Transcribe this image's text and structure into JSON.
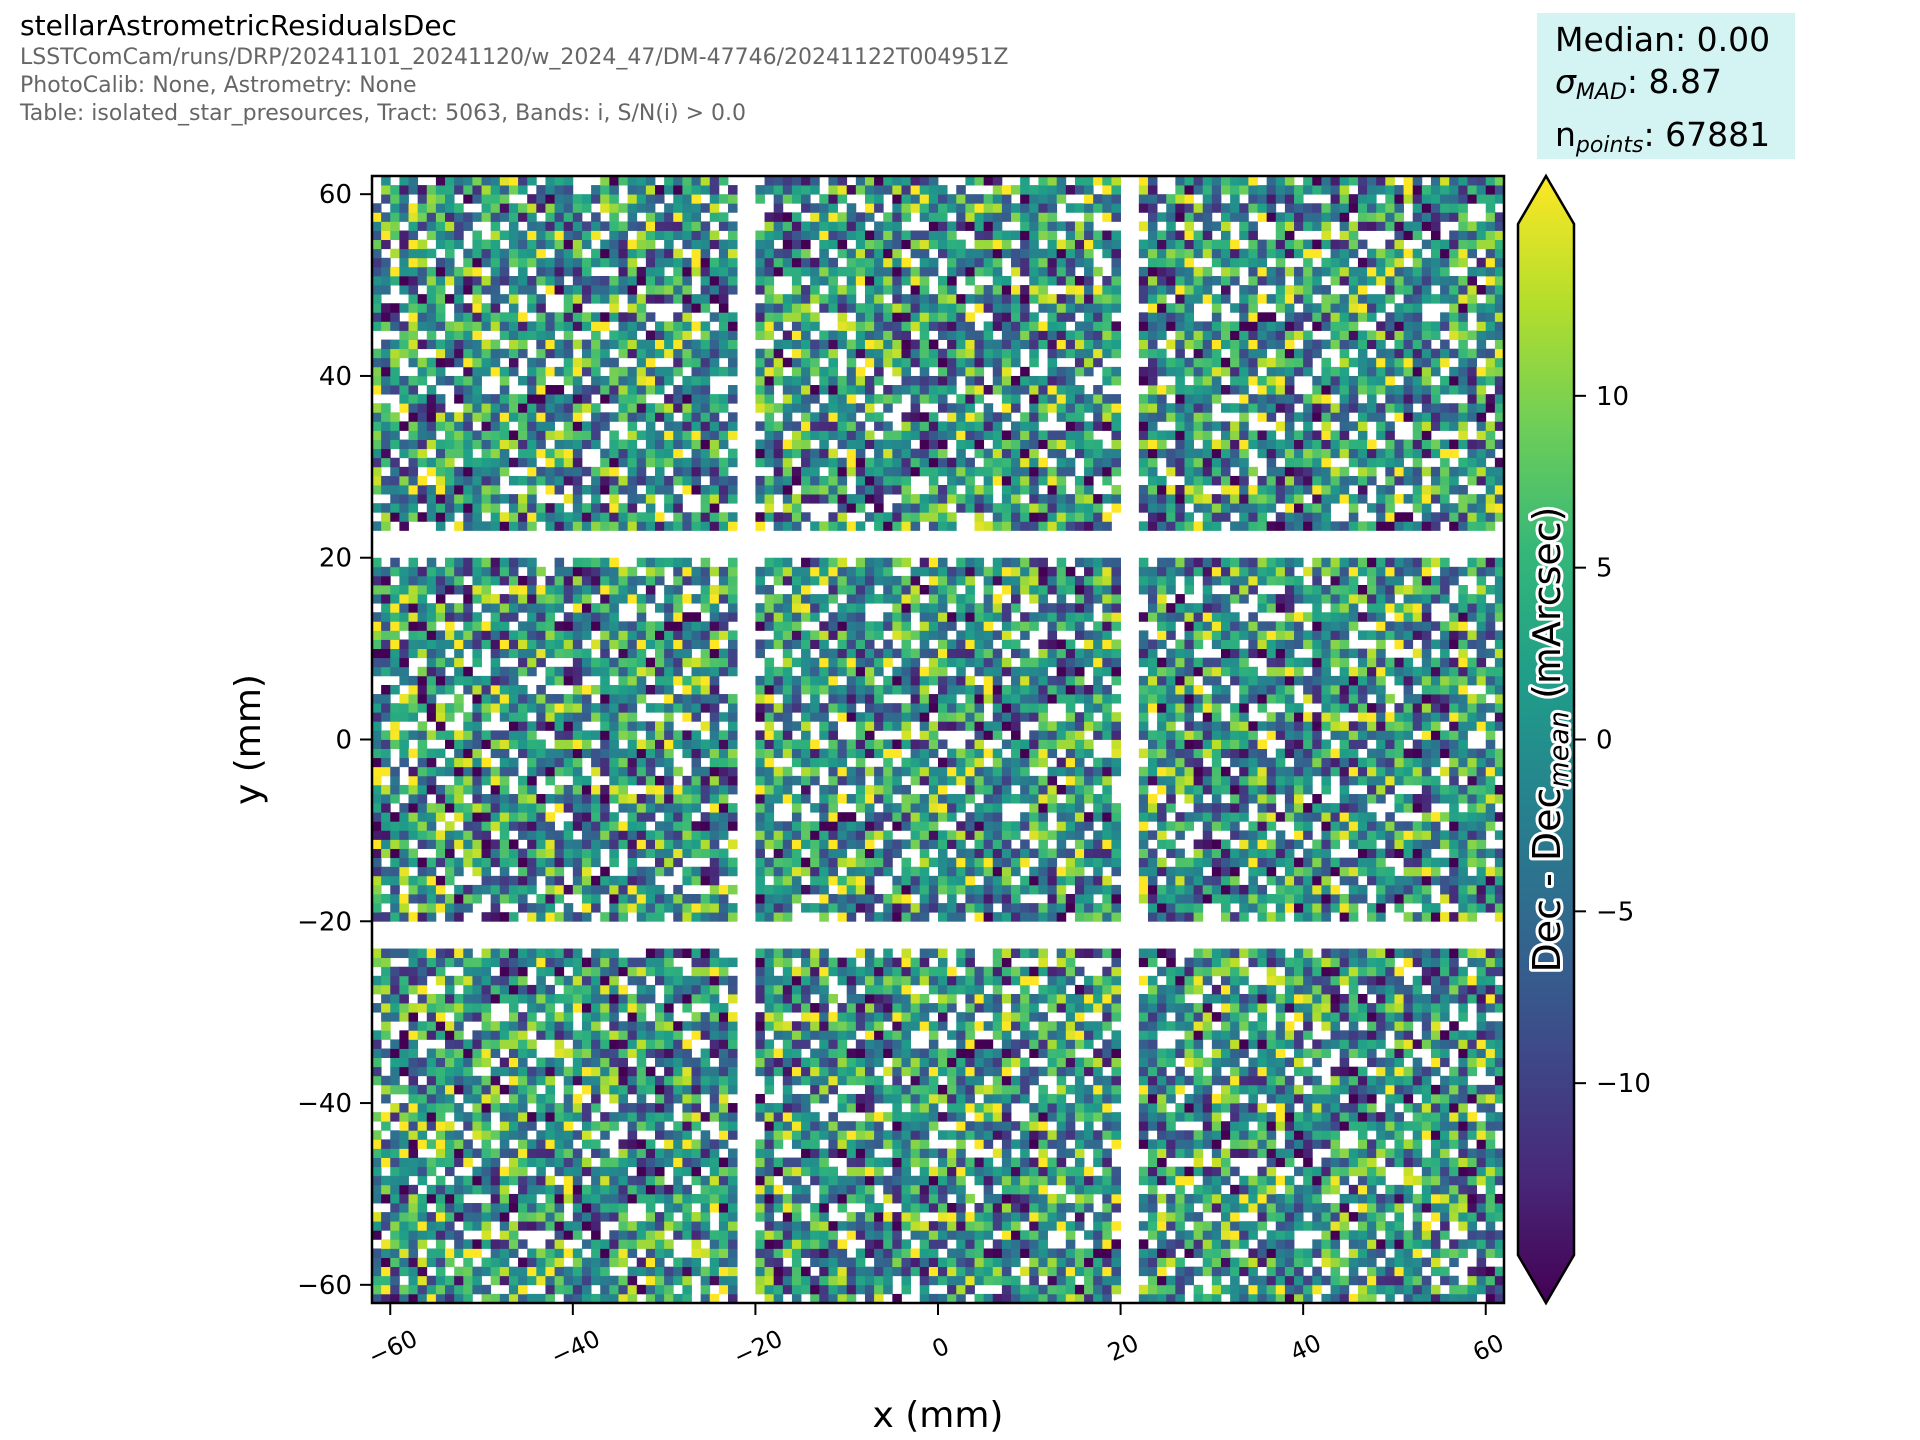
{
  "header": {
    "title": "stellarAstrometricResidualsDec",
    "subtitle_lines": [
      "LSSTComCam/runs/DRP/20241101_20241120/w_2024_47/DM-47746/20241122T004951Z",
      "PhotoCalib: None, Astrometry: None",
      "Table: isolated_star_presources, Tract: 5063, Bands: i, S/N(i) > 0.0"
    ]
  },
  "stats": {
    "median_label": "Median: 0.00",
    "sigma_symbol": "σ",
    "sigma_sub": "MAD",
    "sigma_value": ": 8.87",
    "n_symbol": "n",
    "n_sub": "points",
    "n_value": ": 67881"
  },
  "chart_data": {
    "type": "heatmap",
    "title": "",
    "xlabel": "x (mm)",
    "ylabel": "y (mm)",
    "xlim": [
      -62,
      62
    ],
    "ylim": [
      -62,
      62
    ],
    "xticks": [
      -60,
      -40,
      -20,
      0,
      20,
      40,
      60
    ],
    "xtick_labels": [
      "−60",
      "−40",
      "−20",
      "0",
      "20",
      "40",
      "60"
    ],
    "yticks": [
      -60,
      -40,
      -20,
      0,
      20,
      40,
      60
    ],
    "ytick_labels": [
      "−60",
      "−40",
      "−20",
      "0",
      "20",
      "40",
      "60"
    ],
    "grid": false,
    "colormap": "viridis",
    "colorbar": {
      "label_main": "Dec - Dec",
      "label_sub": "mean",
      "label_unit": " (mArcsec)",
      "vmin": -15,
      "vmax": 15,
      "extend": "both",
      "ticks": [
        10,
        5,
        0,
        -5,
        -10
      ],
      "tick_labels": [
        "10",
        "5",
        "0",
        "−5",
        "−10"
      ]
    },
    "detector_gaps": {
      "x": [
        [
          -22,
          -20.5
        ],
        [
          20.5,
          22
        ]
      ],
      "y": [
        [
          20.5,
          22.5
        ],
        [
          -22.5,
          -20.5
        ]
      ]
    },
    "n_points": 67881,
    "median": 0.0,
    "sigma_mad": 8.87
  },
  "colors": {
    "stats_background": "#d4f3f3",
    "subtitle_text": "#666666",
    "viridis": [
      "#440154",
      "#482878",
      "#3e4989",
      "#31688e",
      "#26828e",
      "#1f9e89",
      "#35b779",
      "#6ece58",
      "#b5de2b",
      "#fde725"
    ]
  }
}
